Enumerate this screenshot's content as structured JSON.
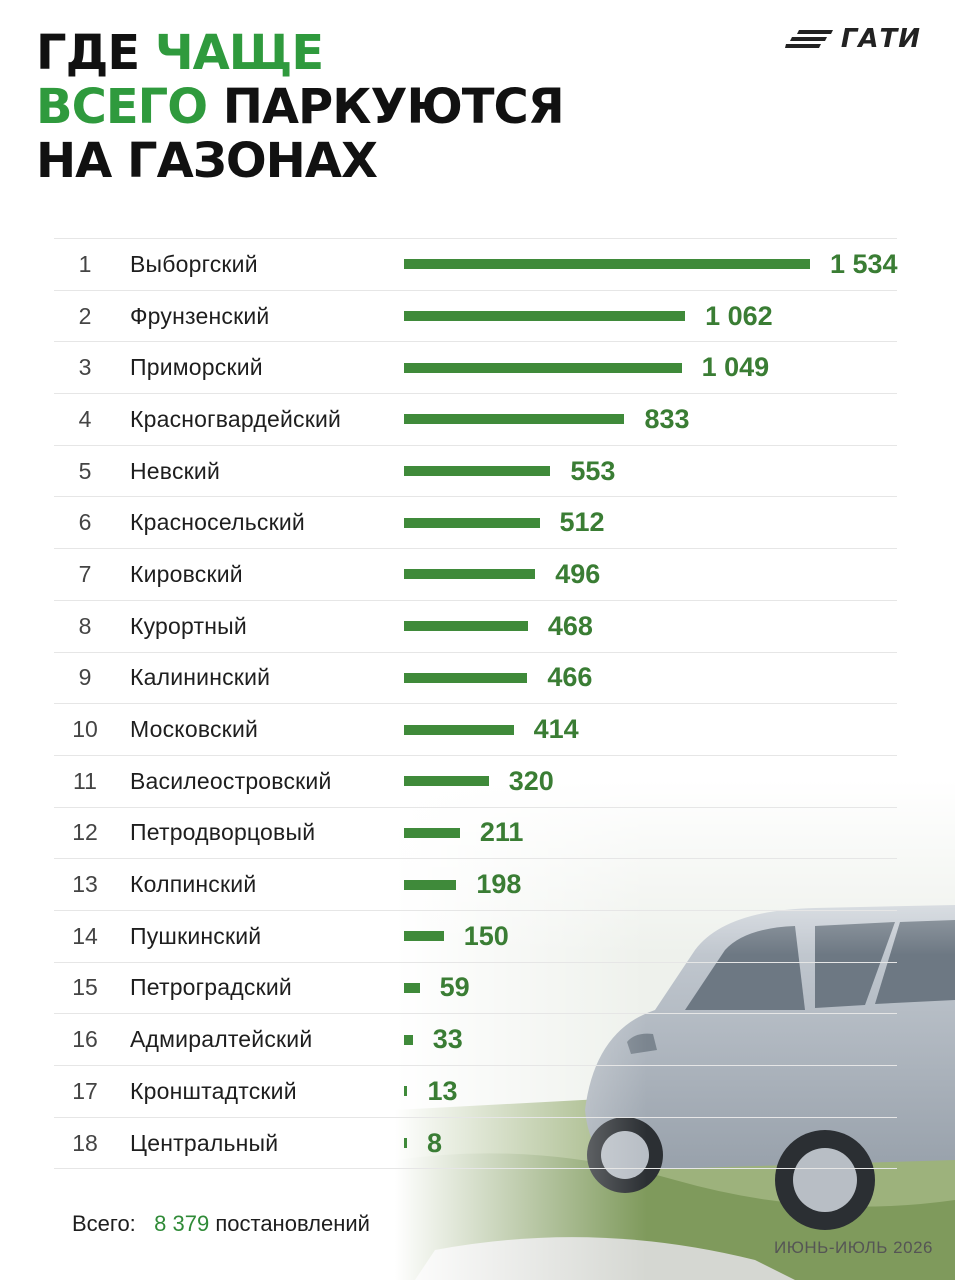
{
  "title": {
    "line1_a": "ГДЕ",
    "line1_b": "ЧАЩЕ",
    "line2_a": "ВСЕГО",
    "line2_b": "ПАРКУЮТСЯ",
    "line3": "НА ГАЗОНАХ"
  },
  "logo": {
    "text": "ГАТИ",
    "icon": "speed-lines-icon"
  },
  "colors": {
    "accent": "#2f9a3d",
    "bar": "#3f8a3a",
    "value": "#3a7d34"
  },
  "chart_data": {
    "type": "bar",
    "orientation": "horizontal",
    "rows": [
      {
        "rank": "1",
        "name": "Выборгский",
        "value": 1534,
        "label": "1 534"
      },
      {
        "rank": "2",
        "name": "Фрунзенский",
        "value": 1062,
        "label": "1 062"
      },
      {
        "rank": "3",
        "name": "Приморский",
        "value": 1049,
        "label": "1 049"
      },
      {
        "rank": "4",
        "name": "Красногвардейский",
        "value": 833,
        "label": "833"
      },
      {
        "rank": "5",
        "name": "Невский",
        "value": 553,
        "label": "553"
      },
      {
        "rank": "6",
        "name": "Красносельский",
        "value": 512,
        "label": "512"
      },
      {
        "rank": "7",
        "name": "Кировский",
        "value": 496,
        "label": "496"
      },
      {
        "rank": "8",
        "name": "Курортный",
        "value": 468,
        "label": "468"
      },
      {
        "rank": "9",
        "name": "Калининский",
        "value": 466,
        "label": "466"
      },
      {
        "rank": "10",
        "name": "Московский",
        "value": 414,
        "label": "414"
      },
      {
        "rank": "11",
        "name": "Василеостровский",
        "value": 320,
        "label": "320"
      },
      {
        "rank": "12",
        "name": "Петродворцовый",
        "value": 211,
        "label": "211"
      },
      {
        "rank": "13",
        "name": "Колпинский",
        "value": 198,
        "label": "198"
      },
      {
        "rank": "14",
        "name": "Пушкинский",
        "value": 150,
        "label": "150"
      },
      {
        "rank": "15",
        "name": "Петроградский",
        "value": 59,
        "label": "59"
      },
      {
        "rank": "16",
        "name": "Адмиралтейский",
        "value": 33,
        "label": "33"
      },
      {
        "rank": "17",
        "name": "Кронштадтский",
        "value": 13,
        "label": "13"
      },
      {
        "rank": "18",
        "name": "Центральный",
        "value": 8,
        "label": "8"
      }
    ]
  },
  "total": {
    "label": "Всего:",
    "value": "8 379",
    "unit": "постановлений"
  },
  "period": "ИЮНЬ-ИЮЛЬ 2026"
}
